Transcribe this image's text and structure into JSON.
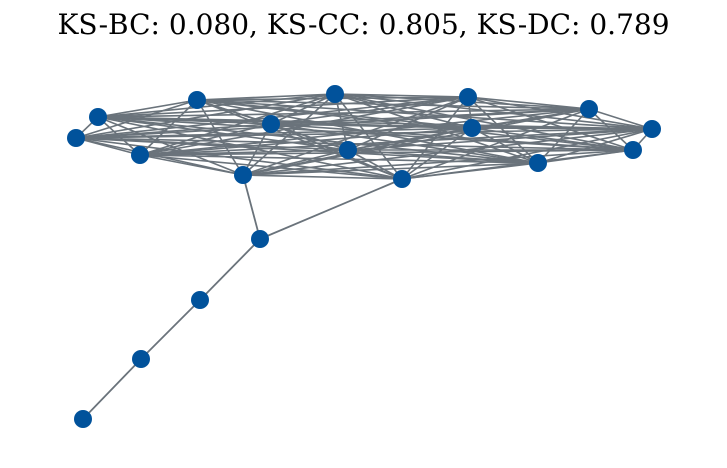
{
  "title": "KS-BC: 0.080, KS-CC: 0.805, KS-DC: 0.789",
  "colors": {
    "node": "#01529b",
    "edge": "#6a737b",
    "background": "#ffffff"
  },
  "graph": {
    "node_count": 22,
    "clique_nodes": 18,
    "tail_nodes": 4
  }
}
